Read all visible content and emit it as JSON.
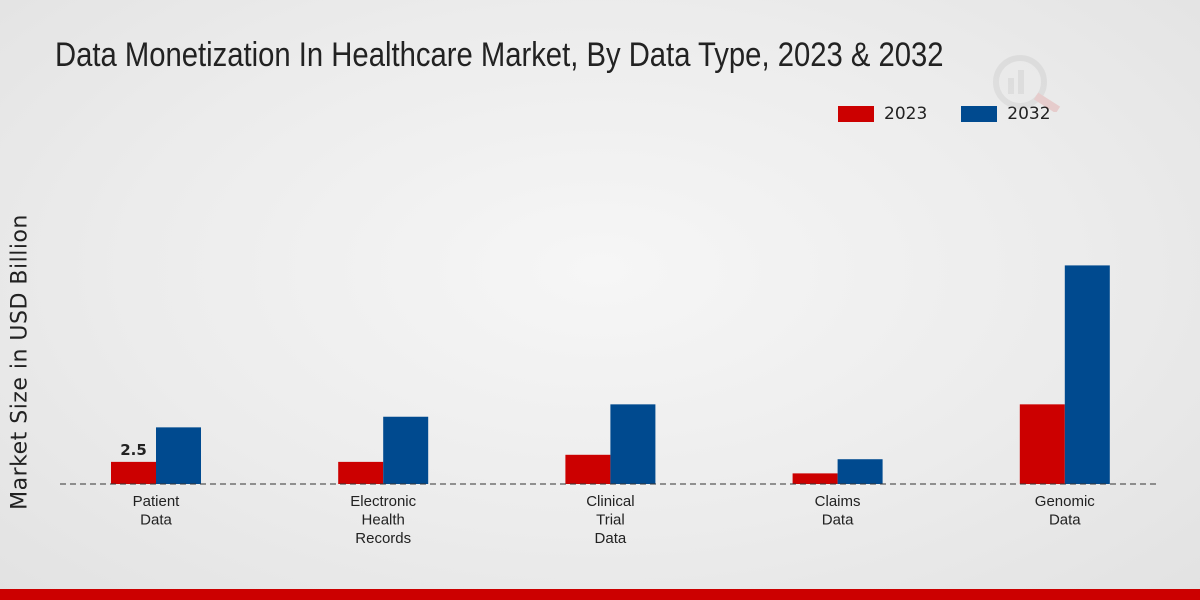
{
  "chart_data": {
    "type": "bar",
    "title": "Data Monetization In Healthcare Market, By Data Type, 2023 & 2032",
    "xlabel": "",
    "ylabel": "Market Size in USD Billion",
    "categories": [
      "Patient Data",
      "Electronic Health Records",
      "Clinical Trial Data",
      "Claims Data",
      "Genomic Data"
    ],
    "category_lines": [
      [
        "Patient",
        "Data"
      ],
      [
        "Electronic",
        "Health",
        "Records"
      ],
      [
        "Clinical",
        "Trial",
        "Data"
      ],
      [
        "Claims",
        "Data"
      ],
      [
        "Genomic",
        "Data"
      ]
    ],
    "series": [
      {
        "name": "2023",
        "color": "#cc0000",
        "values": [
          2.5,
          2.5,
          3.3,
          1.2,
          9.0
        ]
      },
      {
        "name": "2032",
        "color": "#004a8f",
        "values": [
          6.4,
          7.6,
          9.0,
          2.8,
          24.7
        ]
      }
    ],
    "data_labels": [
      {
        "series": 0,
        "index": 0,
        "text": "2.5"
      }
    ],
    "ylim": [
      0,
      40
    ],
    "grid": false,
    "legend_position": "top-right"
  }
}
